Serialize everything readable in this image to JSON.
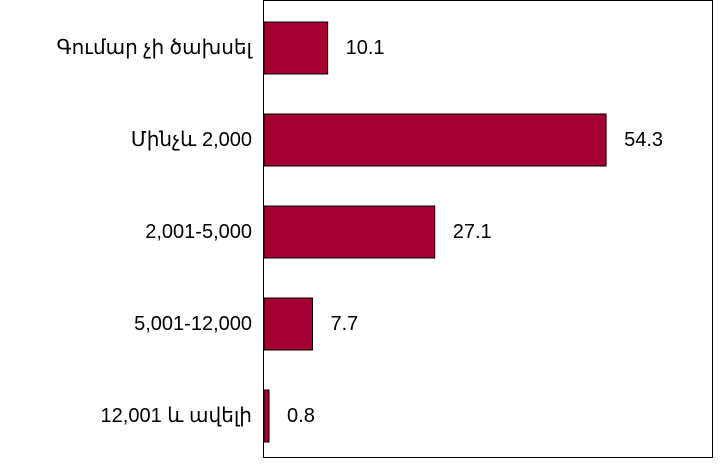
{
  "chart_data": {
    "type": "bar",
    "orientation": "horizontal",
    "categories": [
      "Գումար չի ծախսել",
      "Մինչև 2,000",
      "2,001-5,000",
      "5,001-12,000",
      "12,001 և ավելի"
    ],
    "values": [
      10.1,
      54.3,
      27.1,
      7.7,
      0.8
    ],
    "data_labels": [
      "10.1",
      "54.3",
      "27.1",
      "7.7",
      "0.8"
    ],
    "title": "",
    "xlabel": "",
    "ylabel": "",
    "xlim": [
      0,
      70
    ],
    "grid": false,
    "legend": "none",
    "colors": {
      "bar": "#a50034",
      "bar_edge": "#000000",
      "frame": "#000000",
      "text": "#000000"
    }
  }
}
